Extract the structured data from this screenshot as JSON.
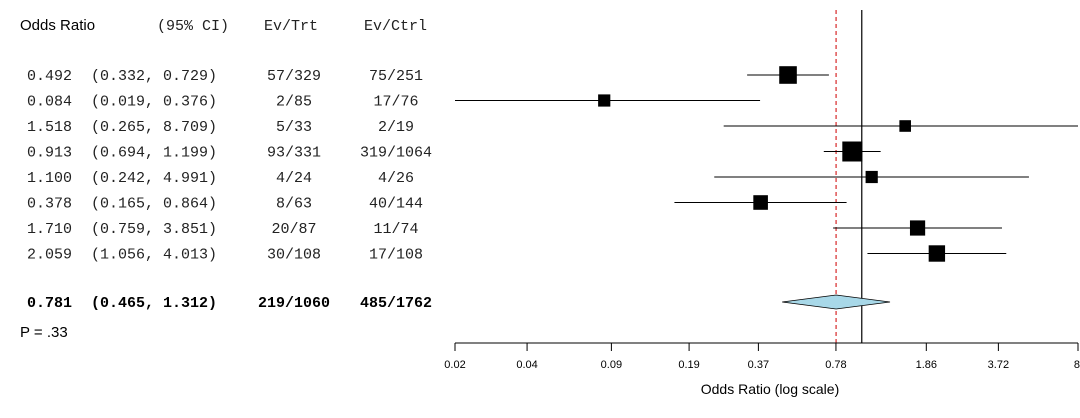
{
  "chart_data": {
    "type": "forest",
    "columns": {
      "or": "Odds Ratio",
      "ci": "(95% CI)",
      "ev_trt": "Ev/Trt",
      "ev_ctrl": "Ev/Ctrl"
    },
    "studies": [
      {
        "or": 0.492,
        "lo": 0.332,
        "hi": 0.729,
        "or_text": "0.492",
        "ci_text": "(0.332, 0.729)",
        "ev_trt": "57/329",
        "ev_ctrl": "75/251",
        "weight": 0.8
      },
      {
        "or": 0.084,
        "lo": 0.019,
        "hi": 0.376,
        "or_text": "0.084",
        "ci_text": "(0.019, 0.376)",
        "ev_trt": "2/85",
        "ev_ctrl": "17/76",
        "weight": 0.35
      },
      {
        "or": 1.518,
        "lo": 0.265,
        "hi": 8.709,
        "or_text": "1.518",
        "ci_text": "(0.265, 8.709)",
        "ev_trt": "5/33",
        "ev_ctrl": "2/19",
        "weight": 0.3
      },
      {
        "or": 0.913,
        "lo": 0.694,
        "hi": 1.199,
        "or_text": "0.913",
        "ci_text": "(0.694, 1.199)",
        "ev_trt": "93/331",
        "ev_ctrl": "319/1064",
        "weight": 1.0
      },
      {
        "or": 1.1,
        "lo": 0.242,
        "hi": 4.991,
        "or_text": "1.100",
        "ci_text": "(0.242, 4.991)",
        "ev_trt": "4/24",
        "ev_ctrl": "4/26",
        "weight": 0.35
      },
      {
        "or": 0.378,
        "lo": 0.165,
        "hi": 0.864,
        "or_text": "0.378",
        "ci_text": "(0.165, 0.864)",
        "ev_trt": "8/63",
        "ev_ctrl": "40/144",
        "weight": 0.55
      },
      {
        "or": 1.71,
        "lo": 0.759,
        "hi": 3.851,
        "or_text": "1.710",
        "ci_text": "(0.759, 3.851)",
        "ev_trt": "20/87",
        "ev_ctrl": "11/74",
        "weight": 0.6
      },
      {
        "or": 2.059,
        "lo": 1.056,
        "hi": 4.013,
        "or_text": "2.059",
        "ci_text": "(1.056, 4.013)",
        "ev_trt": "30/108",
        "ev_ctrl": "17/108",
        "weight": 0.7
      }
    ],
    "summary": {
      "or": 0.781,
      "lo": 0.465,
      "hi": 1.312,
      "or_text": "0.781",
      "ci_text": "(0.465, 1.312)",
      "ev_trt": "219/1060",
      "ev_ctrl": "485/1762"
    },
    "p_value_text": "P = .33",
    "x_axis": {
      "scale": "log",
      "range": [
        0.02,
        8
      ],
      "ticks": [
        0.02,
        0.04,
        0.09,
        0.19,
        0.37,
        0.78,
        1.86,
        3.72,
        8
      ],
      "tick_labels": [
        "0.02",
        "0.04",
        "0.09",
        "0.19",
        "0.37",
        "0.78",
        "1.86",
        "3.72",
        "8"
      ],
      "label": "Odds Ratio (log scale)"
    },
    "reference_lines": {
      "no_effect": 1.0,
      "pooled": 0.781
    },
    "colors": {
      "marker": "#000000",
      "diamond_fill": "#a8d8e8",
      "pooled_line": "#d62728",
      "text": "#222222"
    }
  }
}
